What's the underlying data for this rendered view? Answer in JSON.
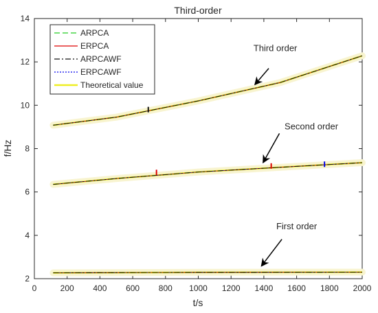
{
  "chart_data": {
    "type": "line",
    "title": "Third-order",
    "xlabel": "t/s",
    "ylabel": "f/Hz",
    "xlim": [
      0,
      2000
    ],
    "ylim": [
      2,
      14
    ],
    "xticks": [
      0,
      200,
      400,
      600,
      800,
      1000,
      1200,
      1400,
      1600,
      1800,
      2000
    ],
    "yticks": [
      2,
      4,
      6,
      8,
      10,
      12,
      14
    ],
    "grid": false,
    "legend_position": "top-left",
    "legend": [
      {
        "label": "ARPCA",
        "color": "#22cc22",
        "dash": "8,4"
      },
      {
        "label": "ERPCA",
        "color": "#dd0000",
        "dash": ""
      },
      {
        "label": "ARPCAWF",
        "color": "#111111",
        "dash": "8,3,2,3"
      },
      {
        "label": "ERPCAWF",
        "color": "#0000ee",
        "dash": "2,2"
      },
      {
        "label": "Theoretical value",
        "color": "#eeee22",
        "dash": ""
      }
    ],
    "series_points": {
      "first_order": [
        [
          115,
          2.27
        ],
        [
          1000,
          2.29
        ],
        [
          2000,
          2.3
        ]
      ],
      "second_order": [
        [
          115,
          6.35
        ],
        [
          500,
          6.62
        ],
        [
          1000,
          6.92
        ],
        [
          1500,
          7.14
        ],
        [
          2000,
          7.35
        ]
      ],
      "third_order": [
        [
          115,
          9.08
        ],
        [
          500,
          9.45
        ],
        [
          1000,
          10.2
        ],
        [
          1500,
          11.05
        ],
        [
          2000,
          12.28
        ]
      ]
    },
    "markers": {
      "second_order": [
        {
          "x": 745,
          "y": 6.9,
          "color": "#dd0000"
        },
        {
          "x": 1445,
          "y": 7.2,
          "color": "#dd0000"
        },
        {
          "x": 1770,
          "y": 7.28,
          "color": "#0000ee"
        }
      ],
      "third_order": [
        {
          "x": 695,
          "y": 9.8,
          "color": "#111111"
        }
      ]
    },
    "annotations": [
      {
        "text": "Third order",
        "x": 1470,
        "y": 12.5,
        "arrow_from": [
          1430,
          11.7
        ],
        "arrow_to": [
          1345,
          10.95
        ]
      },
      {
        "text": "Second order",
        "x": 1690,
        "y": 8.88,
        "arrow_from": [
          1495,
          8.7
        ],
        "arrow_to": [
          1395,
          7.35
        ]
      },
      {
        "text": "First order",
        "x": 1600,
        "y": 4.28,
        "arrow_from": [
          1510,
          3.82
        ],
        "arrow_to": [
          1385,
          2.58
        ]
      }
    ]
  }
}
